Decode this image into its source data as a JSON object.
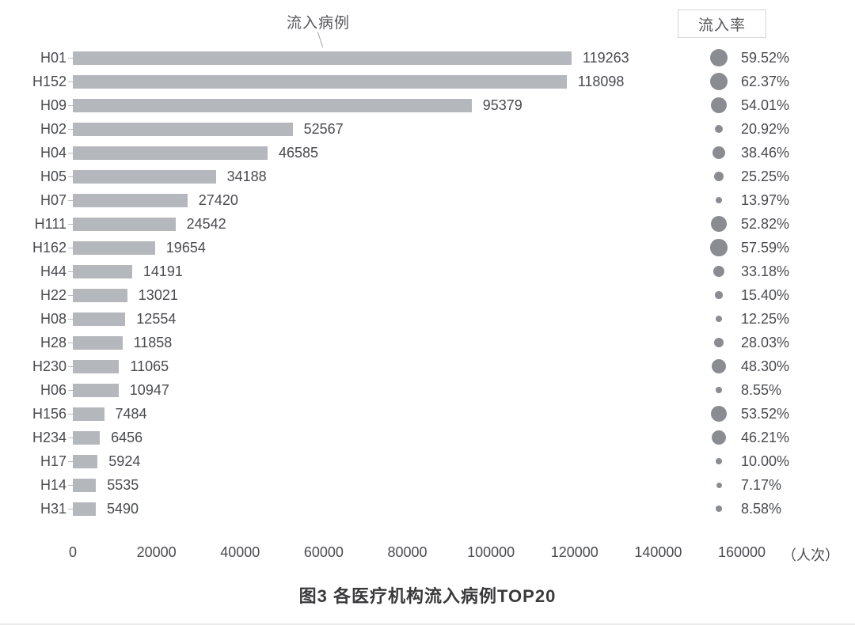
{
  "footer": {
    "x_unit": "（人次）"
  },
  "chart_data": {
    "type": "bar",
    "orientation": "horizontal",
    "title": "图3 各医疗机构流入病例TOP20",
    "categories": [
      "H01",
      "H152",
      "H09",
      "H02",
      "H04",
      "H05",
      "H07",
      "H111",
      "H162",
      "H44",
      "H22",
      "H08",
      "H28",
      "H230",
      "H06",
      "H156",
      "H234",
      "H17",
      "H14",
      "H31"
    ],
    "series": [
      {
        "name": "流入病例",
        "values": [
          119263,
          118098,
          95379,
          52567,
          46585,
          34188,
          27420,
          24542,
          19654,
          14191,
          13021,
          12554,
          11858,
          11065,
          10947,
          7484,
          6456,
          5924,
          5535,
          5490
        ]
      },
      {
        "name": "流入率",
        "values_percent": [
          59.52,
          62.37,
          54.01,
          20.92,
          38.46,
          25.25,
          13.97,
          52.82,
          57.59,
          33.18,
          15.4,
          12.25,
          28.03,
          48.3,
          8.55,
          53.52,
          46.21,
          10.0,
          7.17,
          8.58
        ]
      }
    ],
    "rate_labels": [
      "59.52%",
      "62.37%",
      "54.01%",
      "20.92%",
      "38.46%",
      "25.25%",
      "13.97%",
      "52.82%",
      "57.59%",
      "33.18%",
      "15.40%",
      "12.25%",
      "28.03%",
      "48.30%",
      "8.55%",
      "53.52%",
      "46.21%",
      "10.00%",
      "7.17%",
      "8.58%"
    ],
    "x_ticks": [
      "0",
      "20000",
      "40000",
      "60000",
      "80000",
      "100000",
      "120000",
      "140000",
      "160000"
    ],
    "xlim": [
      0,
      160000
    ],
    "x_unit": "（人次）",
    "grid": false,
    "legend_position": "top",
    "colors": {
      "bar": "#b4b7bb",
      "dot": "#898d92",
      "text": "#4a4b4f"
    }
  }
}
